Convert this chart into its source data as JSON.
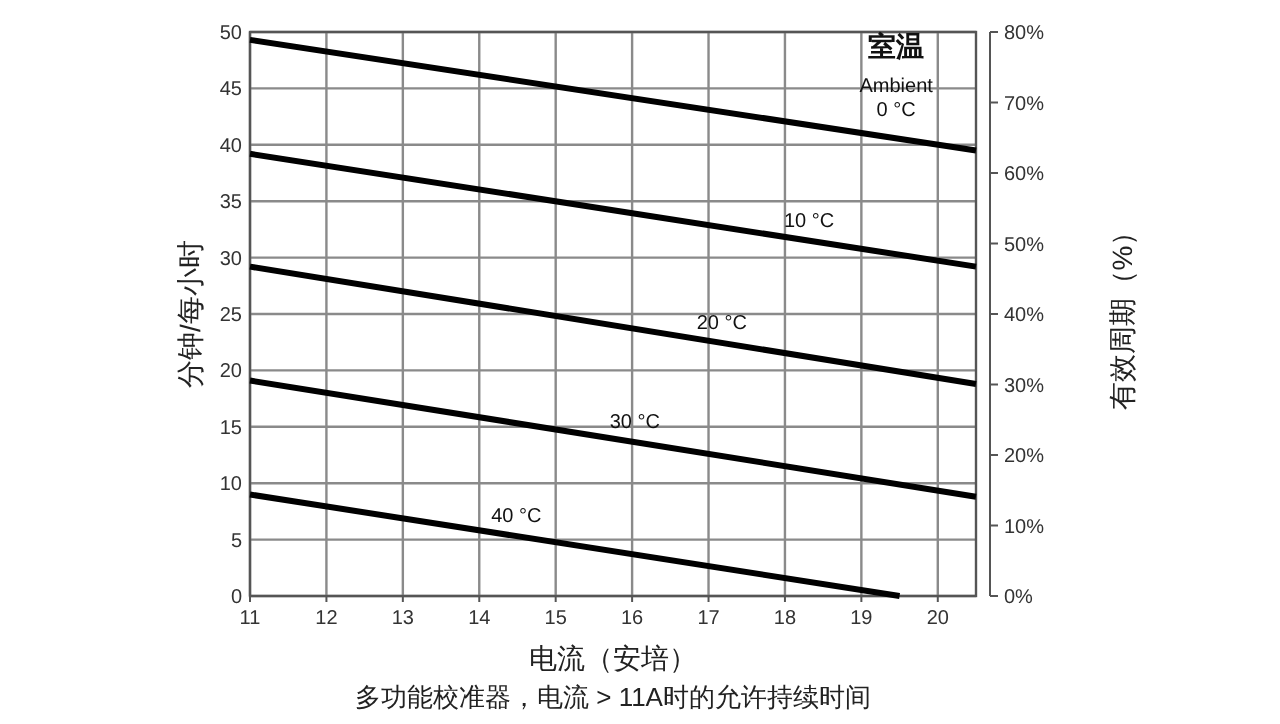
{
  "chart_data": {
    "type": "line",
    "xlabel": "电流（安培）",
    "ylabel": "分钟/每小时",
    "y2label": "有效周期（%）",
    "series": [
      {
        "name": "0 °C",
        "color": "#000000",
        "x": [
          11,
          20.5
        ],
        "values": [
          49.3,
          39.5
        ]
      },
      {
        "name": "10 °C",
        "color": "#000000",
        "x": [
          11,
          20.5
        ],
        "values": [
          39.2,
          29.2
        ]
      },
      {
        "name": "20 °C",
        "color": "#000000",
        "x": [
          11,
          20.5
        ],
        "values": [
          29.2,
          18.8
        ]
      },
      {
        "name": "30 °C",
        "color": "#000000",
        "x": [
          11,
          20.5
        ],
        "values": [
          19.1,
          8.8
        ]
      },
      {
        "name": "40 °C",
        "color": "#000000",
        "x": [
          11,
          19.5
        ],
        "values": [
          9.0,
          0
        ]
      }
    ],
    "xlim": [
      11,
      20.5
    ],
    "xticks": [
      11,
      12,
      13,
      14,
      15,
      16,
      17,
      18,
      19,
      20
    ],
    "ylim": [
      0,
      50
    ],
    "yticks": [
      0,
      5,
      10,
      15,
      20,
      25,
      30,
      35,
      40,
      45,
      50
    ],
    "y2lim": [
      0,
      80
    ],
    "y2ticks": [
      {
        "value": 0,
        "label": "0%"
      },
      {
        "value": 10,
        "label": "10%"
      },
      {
        "value": 20,
        "label": "20%"
      },
      {
        "value": 30,
        "label": "30%"
      },
      {
        "value": 40,
        "label": "40%"
      },
      {
        "value": 50,
        "label": "50%"
      },
      {
        "value": 60,
        "label": "60%"
      },
      {
        "value": 70,
        "label": "70%"
      },
      {
        "value": 80,
        "label": "80%"
      }
    ],
    "grid": true,
    "line_style": "solid",
    "marker": "none",
    "annotations": [
      "室温",
      "Ambient",
      "多功能校准器，电流 > 11A时的允许持续时间"
    ]
  }
}
